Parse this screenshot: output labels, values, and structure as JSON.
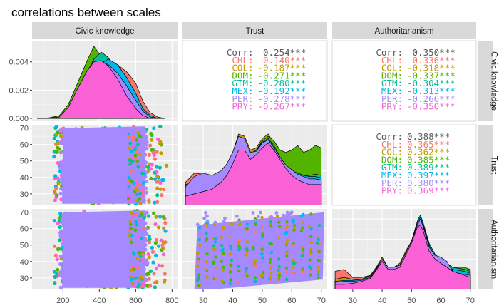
{
  "title": "correlations between scales",
  "variables": [
    "Civic knowledge",
    "Trust",
    "Authoritarianism"
  ],
  "colors": {
    "panel_bg": "#ebebeb",
    "grid_major": "#ffffff",
    "grid_minor": "#f4f4f4",
    "strip_bg": "#d9d9d9",
    "upper_bg": "#ffffff",
    "upper_border": "#d9d9d9",
    "overall_text": "#595959",
    "groups": {
      "CHL": "#F8766D",
      "COL": "#C49A00",
      "DOM": "#53B400",
      "GTM": "#00C094",
      "MEX": "#00B6EB",
      "PER": "#A58AFF",
      "PRY": "#FB61D7"
    }
  },
  "chart_data": {
    "type": "scatter-matrix",
    "groups": [
      "CHL",
      "COL",
      "DOM",
      "GTM",
      "MEX",
      "PER",
      "PRY"
    ],
    "axes": {
      "Civic knowledge": {
        "range": [
          30,
          830
        ],
        "ticks": [
          200,
          400,
          600,
          800
        ],
        "tick_labels": [
          "200",
          "400",
          "600",
          "800"
        ]
      },
      "Trust": {
        "range": [
          23,
          72
        ],
        "ticks": [
          30,
          40,
          50,
          60,
          70
        ],
        "tick_labels": [
          "30",
          "40",
          "50",
          "60",
          "70"
        ]
      },
      "Authoritarianism": {
        "range": [
          23,
          72
        ],
        "ticks": [
          30,
          40,
          50,
          60,
          70
        ],
        "tick_labels": [
          "30",
          "40",
          "50",
          "60",
          "70"
        ]
      },
      "density_civic": {
        "range": [
          -0.0002,
          0.0055
        ],
        "ticks": [
          0,
          0.002,
          0.004
        ],
        "tick_labels": [
          "0.000",
          "0.002",
          "0.004"
        ]
      }
    },
    "correlations": [
      {
        "pair": [
          "Civic knowledge",
          "Trust"
        ],
        "lines": [
          {
            "label": "Corr:",
            "value": "-0.254***",
            "group": "overall"
          },
          {
            "label": "CHL:",
            "value": "-0.140***",
            "group": "CHL"
          },
          {
            "label": "COL:",
            "value": "-0.187***",
            "group": "COL"
          },
          {
            "label": "DOM:",
            "value": "-0.271***",
            "group": "DOM"
          },
          {
            "label": "GTM:",
            "value": "-0.280***",
            "group": "GTM"
          },
          {
            "label": "MEX:",
            "value": "-0.192***",
            "group": "MEX"
          },
          {
            "label": "PER:",
            "value": "-0.278***",
            "group": "PER"
          },
          {
            "label": "PRY:",
            "value": "-0.267***",
            "group": "PRY"
          }
        ]
      },
      {
        "pair": [
          "Civic knowledge",
          "Authoritarianism"
        ],
        "lines": [
          {
            "label": "Corr:",
            "value": "-0.350***",
            "group": "overall"
          },
          {
            "label": "CHL:",
            "value": "-0.336***",
            "group": "CHL"
          },
          {
            "label": "COL:",
            "value": "-0.318***",
            "group": "COL"
          },
          {
            "label": "DOM:",
            "value": "-0.337***",
            "group": "DOM"
          },
          {
            "label": "GTM:",
            "value": "-0.304***",
            "group": "GTM"
          },
          {
            "label": "MEX:",
            "value": "-0.313***",
            "group": "MEX"
          },
          {
            "label": "PER:",
            "value": "-0.266***",
            "group": "PER"
          },
          {
            "label": "PRY:",
            "value": "-0.350***",
            "group": "PRY"
          }
        ]
      },
      {
        "pair": [
          "Trust",
          "Authoritarianism"
        ],
        "lines": [
          {
            "label": "Corr:",
            "value": "0.388***",
            "group": "overall"
          },
          {
            "label": "CHL:",
            "value": "0.365***",
            "group": "CHL"
          },
          {
            "label": "COL:",
            "value": "0.362***",
            "group": "COL"
          },
          {
            "label": "DOM:",
            "value": "0.385***",
            "group": "DOM"
          },
          {
            "label": "GTM:",
            "value": "0.389***",
            "group": "GTM"
          },
          {
            "label": "MEX:",
            "value": "0.397***",
            "group": "MEX"
          },
          {
            "label": "PER:",
            "value": "0.380***",
            "group": "PER"
          },
          {
            "label": "PRY:",
            "value": "0.369***",
            "group": "PRY"
          }
        ]
      }
    ],
    "densities": {
      "civic": {
        "x": [
          60,
          120,
          180,
          230,
          280,
          330,
          370,
          410,
          450,
          500,
          550,
          600,
          640,
          680,
          720,
          760
        ],
        "groups": {
          "CHL": [
            0,
            0,
            5e-05,
            0.0004,
            0.0011,
            0.0019,
            0.0027,
            0.0034,
            0.0038,
            0.0038,
            0.0033,
            0.0025,
            0.0012,
            0.0004,
            0.0001,
            0
          ],
          "COL": [
            0,
            0,
            5e-05,
            0.0004,
            0.0012,
            0.0022,
            0.003,
            0.0037,
            0.0039,
            0.0035,
            0.0026,
            0.0014,
            0.0005,
            0.0001,
            0,
            0
          ],
          "DOM": [
            0,
            3e-05,
            0.0002,
            0.001,
            0.0025,
            0.004,
            0.0051,
            0.0044,
            0.0031,
            0.0017,
            0.0007,
            0.0002,
            4e-05,
            0,
            0,
            0
          ],
          "GTM": [
            0,
            0,
            0.0001,
            0.0006,
            0.0018,
            0.0032,
            0.0042,
            0.0047,
            0.0043,
            0.0032,
            0.0018,
            0.0007,
            0.0002,
            0,
            0,
            0
          ],
          "MEX": [
            0,
            0,
            5e-05,
            0.0004,
            0.0012,
            0.0023,
            0.0032,
            0.0039,
            0.0042,
            0.0038,
            0.0029,
            0.0018,
            0.0007,
            0.0002,
            0,
            0
          ],
          "PER": [
            0,
            0,
            5e-05,
            0.0005,
            0.0015,
            0.0027,
            0.0035,
            0.004,
            0.0038,
            0.0032,
            0.0023,
            0.0013,
            0.0005,
            0.0001,
            0,
            0
          ],
          "PRY": [
            0,
            2e-05,
            0.0001,
            0.0008,
            0.0021,
            0.0033,
            0.004,
            0.0041,
            0.0037,
            0.0028,
            0.0016,
            0.0007,
            0.0002,
            0,
            0,
            0
          ]
        }
      },
      "trust": {
        "x": [
          24,
          27,
          30,
          33,
          36,
          38,
          40,
          42,
          44,
          46,
          48,
          50,
          52,
          54,
          56,
          58,
          60,
          62,
          64,
          66,
          68,
          70
        ],
        "groups": {
          "CHL": [
            0.02,
            0.028,
            0.027,
            0.025,
            0.028,
            0.032,
            0.04,
            0.053,
            0.052,
            0.042,
            0.043,
            0.05,
            0.053,
            0.048,
            0.043,
            0.038,
            0.034,
            0.03,
            0.027,
            0.026,
            0.026,
            0.024
          ],
          "COL": [
            0.018,
            0.02,
            0.022,
            0.024,
            0.028,
            0.034,
            0.046,
            0.062,
            0.06,
            0.048,
            0.05,
            0.058,
            0.062,
            0.054,
            0.044,
            0.035,
            0.03,
            0.026,
            0.024,
            0.022,
            0.021,
            0.02
          ],
          "DOM": [
            0.01,
            0.012,
            0.014,
            0.018,
            0.024,
            0.03,
            0.038,
            0.05,
            0.052,
            0.044,
            0.048,
            0.056,
            0.06,
            0.056,
            0.048,
            0.046,
            0.048,
            0.052,
            0.046,
            0.048,
            0.052,
            0.05
          ],
          "GTM": [
            0.012,
            0.014,
            0.016,
            0.02,
            0.026,
            0.032,
            0.042,
            0.056,
            0.055,
            0.045,
            0.048,
            0.055,
            0.058,
            0.052,
            0.042,
            0.034,
            0.03,
            0.028,
            0.026,
            0.026,
            0.027,
            0.026
          ],
          "MEX": [
            0.014,
            0.016,
            0.018,
            0.022,
            0.027,
            0.033,
            0.042,
            0.054,
            0.053,
            0.045,
            0.048,
            0.054,
            0.057,
            0.05,
            0.041,
            0.034,
            0.03,
            0.028,
            0.026,
            0.025,
            0.025,
            0.024
          ],
          "PER": [
            0.016,
            0.025,
            0.028,
            0.026,
            0.03,
            0.036,
            0.046,
            0.06,
            0.058,
            0.046,
            0.047,
            0.054,
            0.057,
            0.05,
            0.042,
            0.035,
            0.031,
            0.027,
            0.025,
            0.023,
            0.023,
            0.022
          ],
          "PRY": [
            0.008,
            0.01,
            0.012,
            0.014,
            0.02,
            0.026,
            0.036,
            0.048,
            0.048,
            0.04,
            0.044,
            0.05,
            0.054,
            0.048,
            0.04,
            0.032,
            0.026,
            0.022,
            0.02,
            0.018,
            0.018,
            0.018
          ]
        }
      },
      "auth": {
        "x": [
          24,
          27,
          30,
          33,
          36,
          38,
          40,
          42,
          44,
          46,
          48,
          50,
          52,
          53,
          54,
          56,
          58,
          60,
          62,
          64,
          66,
          68,
          70
        ],
        "groups": {
          "CHL": [
            0.018,
            0.02,
            0.012,
            0.012,
            0.014,
            0.022,
            0.03,
            0.022,
            0.022,
            0.024,
            0.036,
            0.046,
            0.064,
            0.068,
            0.06,
            0.04,
            0.03,
            0.024,
            0.018,
            0.014,
            0.014,
            0.014,
            0.012
          ],
          "COL": [
            0.01,
            0.012,
            0.01,
            0.01,
            0.014,
            0.022,
            0.032,
            0.022,
            0.022,
            0.026,
            0.038,
            0.048,
            0.066,
            0.07,
            0.062,
            0.04,
            0.032,
            0.026,
            0.02,
            0.016,
            0.016,
            0.015,
            0.014
          ],
          "DOM": [
            0.008,
            0.008,
            0.008,
            0.009,
            0.012,
            0.02,
            0.03,
            0.022,
            0.022,
            0.024,
            0.036,
            0.048,
            0.066,
            0.072,
            0.064,
            0.044,
            0.034,
            0.03,
            0.026,
            0.022,
            0.022,
            0.022,
            0.02
          ],
          "GTM": [
            0.007,
            0.008,
            0.008,
            0.009,
            0.012,
            0.02,
            0.03,
            0.022,
            0.022,
            0.024,
            0.036,
            0.048,
            0.068,
            0.074,
            0.066,
            0.046,
            0.035,
            0.03,
            0.026,
            0.022,
            0.021,
            0.02,
            0.018
          ],
          "MEX": [
            0.008,
            0.009,
            0.009,
            0.01,
            0.013,
            0.021,
            0.03,
            0.022,
            0.022,
            0.024,
            0.036,
            0.048,
            0.066,
            0.072,
            0.064,
            0.044,
            0.033,
            0.028,
            0.024,
            0.02,
            0.019,
            0.018,
            0.016
          ],
          "PER": [
            0.007,
            0.008,
            0.008,
            0.009,
            0.012,
            0.02,
            0.03,
            0.022,
            0.022,
            0.024,
            0.036,
            0.048,
            0.064,
            0.07,
            0.062,
            0.042,
            0.034,
            0.032,
            0.028,
            0.018,
            0.016,
            0.015,
            0.014
          ],
          "PRY": [
            0.005,
            0.005,
            0.006,
            0.008,
            0.011,
            0.019,
            0.028,
            0.02,
            0.02,
            0.022,
            0.034,
            0.046,
            0.062,
            0.064,
            0.058,
            0.038,
            0.03,
            0.026,
            0.022,
            0.018,
            0.016,
            0.014,
            0.012
          ]
        }
      }
    }
  }
}
